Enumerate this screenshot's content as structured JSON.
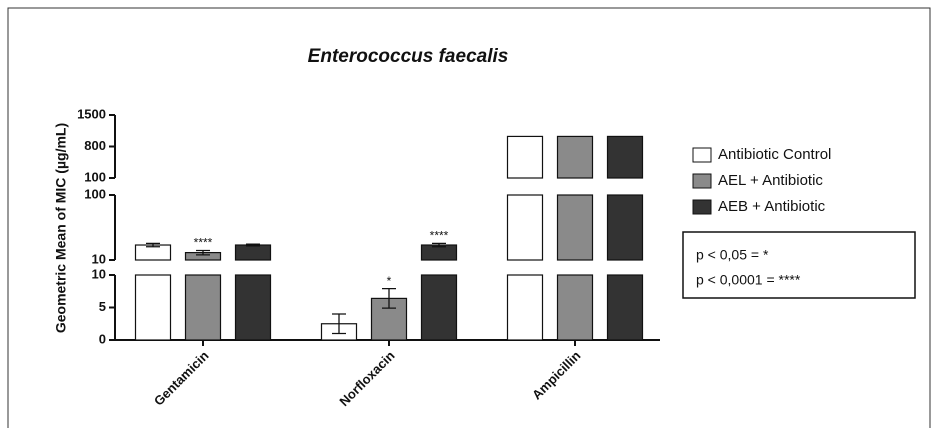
{
  "chart_data": {
    "type": "bar",
    "title": "Enterococcus faecalis",
    "ylabel": "Geometric Mean of MIC (µg/mL)",
    "categories": [
      "Gentamicin",
      "Norfloxacin",
      "Ampicillin"
    ],
    "series": [
      {
        "name": "Antibiotic Control",
        "color": "#ffffff",
        "values": [
          17,
          2.5,
          1024
        ],
        "errors": [
          1,
          1.5,
          null
        ],
        "significance": [
          null,
          null,
          null
        ]
      },
      {
        "name": "AEL + Antibiotic",
        "color": "#8a8a8a",
        "values": [
          13,
          6.4,
          1024
        ],
        "errors": [
          1,
          1.5,
          null
        ],
        "significance": [
          "****",
          "*",
          null
        ]
      },
      {
        "name": "AEB + Antibiotic",
        "color": "#333333",
        "values": [
          17,
          17,
          1024
        ],
        "errors": [
          0.5,
          1,
          null
        ],
        "significance": [
          null,
          "****",
          null
        ]
      }
    ],
    "y_segments": [
      {
        "ylim": [
          0,
          10
        ],
        "yticks": [
          0,
          5,
          10
        ],
        "log": false
      },
      {
        "ylim": [
          10,
          100
        ],
        "yticks": [
          10,
          100
        ],
        "log": true
      },
      {
        "ylim": [
          100,
          1500
        ],
        "yticks": [
          100,
          800,
          1500
        ],
        "log": false
      }
    ],
    "notes": [
      "p < 0,05 = *",
      "p < 0,0001 = ****"
    ]
  }
}
